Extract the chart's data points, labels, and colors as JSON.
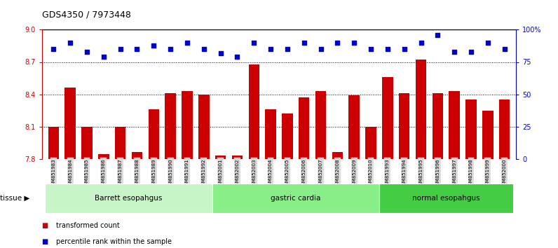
{
  "title": "GDS4350 / 7973448",
  "categories": [
    "GSM851983",
    "GSM851984",
    "GSM851985",
    "GSM851986",
    "GSM851987",
    "GSM851988",
    "GSM851989",
    "GSM851990",
    "GSM851991",
    "GSM851992",
    "GSM852001",
    "GSM852002",
    "GSM852003",
    "GSM852004",
    "GSM852005",
    "GSM852006",
    "GSM852007",
    "GSM852008",
    "GSM852009",
    "GSM852010",
    "GSM851993",
    "GSM851994",
    "GSM851995",
    "GSM851996",
    "GSM851997",
    "GSM851998",
    "GSM851999",
    "GSM852000"
  ],
  "bar_values": [
    8.1,
    8.46,
    8.1,
    7.84,
    8.1,
    7.86,
    8.26,
    8.41,
    8.43,
    8.4,
    7.83,
    7.83,
    8.68,
    8.26,
    8.22,
    8.37,
    8.43,
    7.86,
    8.39,
    8.1,
    8.56,
    8.41,
    8.72,
    8.41,
    8.43,
    8.35,
    8.25,
    8.35
  ],
  "percentile_values": [
    85,
    90,
    83,
    79,
    85,
    85,
    88,
    85,
    90,
    85,
    82,
    79,
    90,
    85,
    85,
    90,
    85,
    90,
    90,
    85,
    85,
    85,
    90,
    96,
    83,
    83,
    90,
    85
  ],
  "bar_color": "#cc0000",
  "dot_color": "#0000cc",
  "ylim_left": [
    7.8,
    9.0
  ],
  "ylim_right": [
    0,
    100
  ],
  "yticks_left": [
    7.8,
    8.1,
    8.4,
    8.7,
    9.0
  ],
  "yticks_right": [
    0,
    25,
    50,
    75,
    100
  ],
  "ytick_labels_right": [
    "0",
    "25",
    "50",
    "75",
    "100%"
  ],
  "hlines": [
    8.1,
    8.4,
    8.7
  ],
  "group_ranges": [
    [
      0,
      10
    ],
    [
      10,
      20
    ],
    [
      20,
      28
    ]
  ],
  "group_labels": [
    "Barrett esopahgus",
    "gastric cardia",
    "normal esopahgus"
  ],
  "group_colors": [
    "#c8f5c8",
    "#88ee88",
    "#44cc44"
  ],
  "legend_items": [
    {
      "label": "transformed count",
      "color": "#cc0000"
    },
    {
      "label": "percentile rank within the sample",
      "color": "#0000cc"
    }
  ],
  "tissue_label": "tissue",
  "bg_color": "#ffffff",
  "xticklabel_bg": "#d8d8d8"
}
